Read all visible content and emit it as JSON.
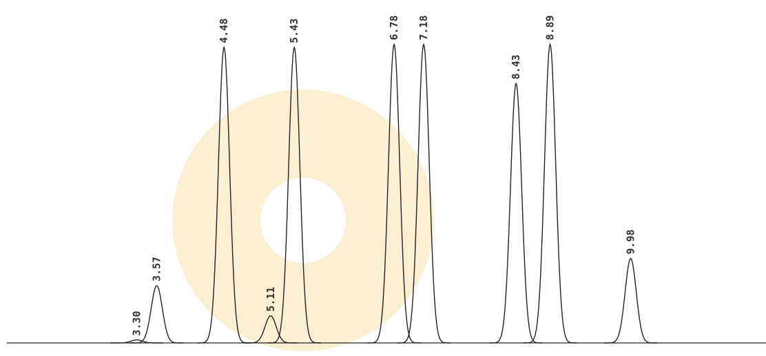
{
  "chart_data": {
    "type": "chromatogram",
    "color": "#222222",
    "times": [
      {
        "value": 3.3,
        "label": "3.30"
      },
      3.57,
      4.48,
      5.11,
      5.43,
      6.78,
      7.18,
      8.43,
      8.89,
      9.98
    ],
    "heights": [
      1,
      19,
      98,
      9,
      98,
      99,
      99,
      86,
      99,
      28
    ],
    "xlim": [
      1.45,
      11.81
    ],
    "ylim": [
      0,
      100
    ]
  }
}
